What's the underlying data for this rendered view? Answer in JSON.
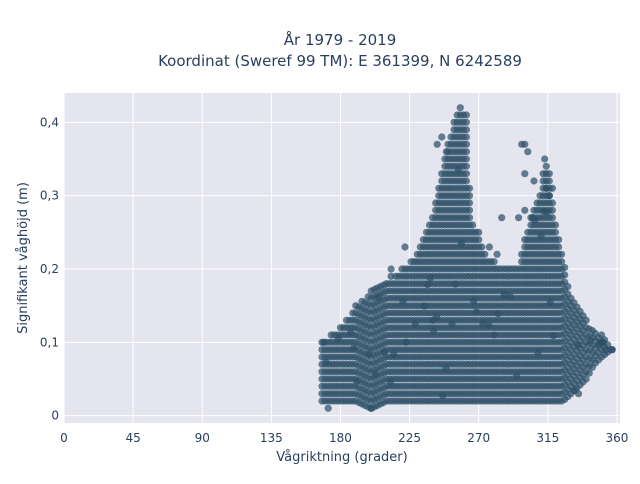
{
  "chart_data": {
    "type": "scatter",
    "title_line1": "År 1979 - 2019",
    "title_line2": "Koordinat (Sweref 99 TM): E 361399, N 6242589",
    "xlabel": "Vågriktning (grader)",
    "ylabel": "Signifikant våghöjd (m)",
    "xlim": [
      0,
      362
    ],
    "ylim": [
      -0.01,
      0.44
    ],
    "xticks": [
      0,
      45,
      90,
      135,
      180,
      225,
      270,
      315,
      360
    ],
    "xtick_labels": [
      "0",
      "45",
      "90",
      "135",
      "180",
      "225",
      "270",
      "315",
      "360"
    ],
    "yticks": [
      0,
      0.1,
      0.2,
      0.3,
      0.4
    ],
    "ytick_labels": [
      "0",
      "0,1",
      "0,2",
      "0,3",
      "0,4"
    ],
    "grid": true,
    "legend": "none",
    "colors": {
      "background": "#e5e5f0",
      "grid": "#ffffff",
      "marker": "#2e5068"
    },
    "series": [
      {
        "envelope": {
          "x": [
            168,
            180,
            190,
            200,
            210,
            220,
            230,
            240,
            245,
            250,
            255,
            258,
            262,
            265,
            270,
            275,
            280,
            285,
            290,
            295,
            300,
            305,
            310,
            315,
            320,
            325,
            330,
            340,
            345,
            350,
            356
          ],
          "y_max": [
            0.1,
            0.12,
            0.15,
            0.17,
            0.18,
            0.2,
            0.22,
            0.27,
            0.33,
            0.37,
            0.41,
            0.42,
            0.41,
            0.27,
            0.25,
            0.22,
            0.21,
            0.2,
            0.2,
            0.2,
            0.24,
            0.28,
            0.3,
            0.35,
            0.26,
            0.22,
            0.16,
            0.13,
            0.12,
            0.11,
            0.09
          ],
          "y_min": [
            0.02,
            0.02,
            0.02,
            0.01,
            0.02,
            0.02,
            0.02,
            0.02,
            0.02,
            0.02,
            0.02,
            0.02,
            0.02,
            0.02,
            0.02,
            0.02,
            0.02,
            0.02,
            0.02,
            0.02,
            0.02,
            0.02,
            0.02,
            0.02,
            0.02,
            0.02,
            0.03,
            0.05,
            0.07,
            0.08,
            0.09
          ]
        },
        "outliers": [
          [
            298,
            0.37
          ],
          [
            300,
            0.37
          ],
          [
            302,
            0.36
          ],
          [
            300,
            0.33
          ],
          [
            306,
            0.32
          ],
          [
            313,
            0.35
          ],
          [
            314,
            0.31
          ],
          [
            312,
            0.33
          ],
          [
            316,
            0.3
          ],
          [
            318,
            0.31
          ],
          [
            300,
            0.28
          ],
          [
            305,
            0.27
          ],
          [
            296,
            0.27
          ],
          [
            282,
            0.22
          ],
          [
            285,
            0.27
          ],
          [
            277,
            0.23
          ],
          [
            240,
            0.13
          ],
          [
            280,
            0.11
          ],
          [
            246,
            0.38
          ],
          [
            243,
            0.37
          ],
          [
            249,
            0.36
          ],
          [
            169,
            0.1
          ],
          [
            172,
            0.01
          ],
          [
            200,
            0.01
          ],
          [
            357,
            0.09
          ],
          [
            335,
            0.03
          ],
          [
            351,
            0.1
          ],
          [
            349,
            0.1
          ],
          [
            222,
            0.23
          ],
          [
            213,
            0.2
          ],
          [
            213,
            0.19
          ]
        ]
      }
    ]
  }
}
